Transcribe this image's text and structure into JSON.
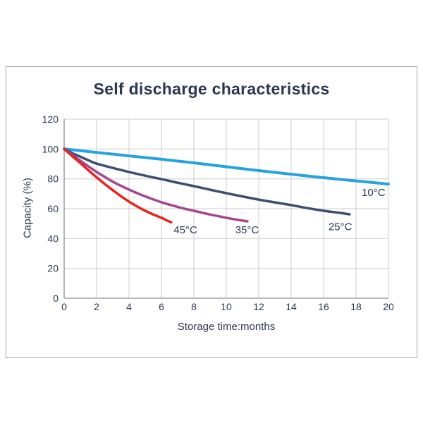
{
  "chart_data": {
    "type": "line",
    "title": "Self discharge characteristics",
    "xlabel": "Storage time:months",
    "ylabel": "Capacity (%)",
    "xlim": [
      0,
      20
    ],
    "ylim": [
      0,
      120
    ],
    "xticks": [
      0,
      2,
      4,
      6,
      8,
      10,
      12,
      14,
      16,
      18,
      20
    ],
    "yticks": [
      0,
      20,
      40,
      60,
      80,
      100,
      120
    ],
    "grid": true,
    "legend_position": "inline-labels",
    "colors": {
      "grid": "#cdcdcd",
      "axis": "#8f8f8f",
      "text": "#2b3750"
    },
    "series": [
      {
        "name": "10C",
        "label": "10°C",
        "color": "#25a3dd",
        "width": 4,
        "label_pos": {
          "x": 18.35,
          "y": 68.5
        },
        "points": [
          [
            0,
            100
          ],
          [
            2,
            97.7
          ],
          [
            4,
            95.4
          ],
          [
            6,
            93.1
          ],
          [
            8,
            90.7
          ],
          [
            10,
            88.1
          ],
          [
            12,
            85.5
          ],
          [
            14,
            83.1
          ],
          [
            16,
            80.8
          ],
          [
            18,
            78.6
          ],
          [
            20,
            76.5
          ]
        ]
      },
      {
        "name": "25C",
        "label": "25°C",
        "color": "#3e4e71",
        "width": 3.5,
        "label_pos": {
          "x": 16.3,
          "y": 45.5
        },
        "points": [
          [
            0,
            100
          ],
          [
            0.5,
            97.2
          ],
          [
            1,
            94.8
          ],
          [
            1.5,
            92.4
          ],
          [
            2,
            90.2
          ],
          [
            3,
            87.3
          ],
          [
            4,
            84.6
          ],
          [
            5,
            82.1
          ],
          [
            6,
            79.8
          ],
          [
            7,
            77.4
          ],
          [
            8,
            75.1
          ],
          [
            9,
            72.7
          ],
          [
            10,
            70.4
          ],
          [
            11,
            68.2
          ],
          [
            12,
            66.1
          ],
          [
            13,
            64.2
          ],
          [
            14,
            62.4
          ],
          [
            15,
            60.4
          ],
          [
            16,
            58.6
          ],
          [
            17,
            57.2
          ],
          [
            17.6,
            56.2
          ]
        ]
      },
      {
        "name": "35C",
        "label": "35°C",
        "color": "#a64691",
        "width": 3.5,
        "label_pos": {
          "x": 10.55,
          "y": 43.5
        },
        "points": [
          [
            0,
            100
          ],
          [
            0.5,
            96
          ],
          [
            1,
            92.2
          ],
          [
            1.5,
            88.3
          ],
          [
            2,
            84.6
          ],
          [
            2.5,
            81.3
          ],
          [
            3,
            78.1
          ],
          [
            3.5,
            75.3
          ],
          [
            4,
            72.8
          ],
          [
            4.5,
            70.4
          ],
          [
            5,
            68.2
          ],
          [
            5.5,
            66.2
          ],
          [
            6,
            64.3
          ],
          [
            6.5,
            62.7
          ],
          [
            7,
            61.2
          ],
          [
            7.5,
            59.8
          ],
          [
            8,
            58.6
          ],
          [
            8.5,
            57.3
          ],
          [
            9,
            56.1
          ],
          [
            9.5,
            55
          ],
          [
            10,
            53.9
          ],
          [
            10.5,
            52.9
          ],
          [
            11,
            52
          ],
          [
            11.3,
            51.5
          ]
        ]
      },
      {
        "name": "45C",
        "label": "45°C",
        "color": "#e8231f",
        "width": 3.5,
        "label_pos": {
          "x": 6.75,
          "y": 43.5
        },
        "points": [
          [
            0,
            100
          ],
          [
            0.5,
            95.2
          ],
          [
            1,
            90.6
          ],
          [
            1.5,
            85.7
          ],
          [
            2,
            81
          ],
          [
            2.5,
            76.6
          ],
          [
            3,
            72.4
          ],
          [
            3.5,
            68.4
          ],
          [
            4,
            64.7
          ],
          [
            4.5,
            61.5
          ],
          [
            5,
            58.6
          ],
          [
            5.5,
            56.1
          ],
          [
            6,
            53.9
          ],
          [
            6.3,
            52.3
          ],
          [
            6.6,
            50.9
          ]
        ]
      }
    ]
  }
}
